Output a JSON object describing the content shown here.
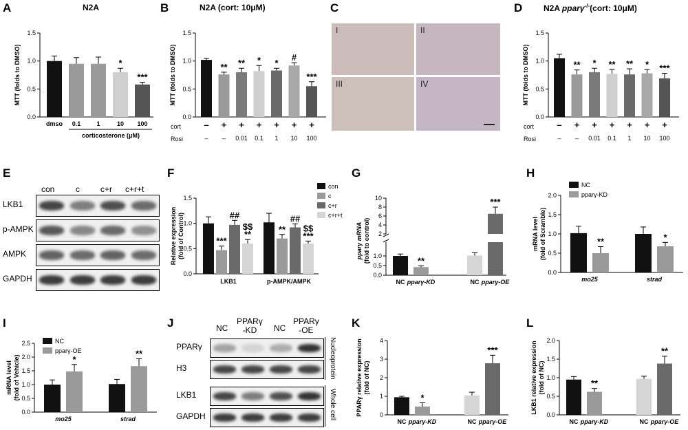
{
  "panels": {
    "A": {
      "label": "A",
      "title": "N2A",
      "ylabel": "MTT (folds to DMSO)",
      "xgroup": "corticosterone (μM)"
    },
    "B": {
      "label": "B",
      "title": "N2A (cort: 10μM)",
      "ylabel": "MTT (folds to DMSO)",
      "row1_label": "cort",
      "row2_label": "Rosi",
      "row1": [
        "–",
        "+",
        "+",
        "+",
        "+",
        "+",
        "+"
      ],
      "row2": [
        "–",
        "–",
        "0.01",
        "0.1",
        "1",
        "10",
        "100"
      ]
    },
    "C": {
      "label": "C",
      "quadrants": [
        "I",
        "II",
        "III",
        "IV"
      ]
    },
    "D": {
      "label": "D",
      "title_prefix": "N2A ",
      "title_gene": "pparγ",
      "title_sup": "-/-",
      "title_suffix": "(cort: 10μM)",
      "ylabel": "MTT (folds to DMSO)",
      "row1_label": "cort",
      "row2_label": "Rosi",
      "row1": [
        "–",
        "+",
        "+",
        "+",
        "+",
        "+",
        "+"
      ],
      "row2": [
        "–",
        "–",
        "0.01",
        "0.1",
        "1",
        "10",
        "100"
      ]
    },
    "E": {
      "label": "E",
      "lanes": [
        "con",
        "c",
        "c+r",
        "c+r+t"
      ],
      "rows": [
        "LKB1",
        "p-AMPK",
        "AMPK",
        "GAPDH"
      ]
    },
    "F": {
      "label": "F",
      "ylabel": "Relative expression",
      "ylabel2": "(fold of Control)",
      "legend": [
        "con",
        "c",
        "c+r",
        "c+r+t"
      ],
      "groups": [
        "LKB1",
        "p-AMPK/AMPK"
      ]
    },
    "G": {
      "label": "G",
      "ylabel": "pparγ mRNA",
      "ylabel2": "(fold to control)",
      "cats": [
        "NC",
        "pparγ-KD",
        "NC",
        "pparγ-OE"
      ]
    },
    "H": {
      "label": "H",
      "ylabel": "mRNA level",
      "ylabel2": "(fold of Scramble)",
      "legend": [
        "NC",
        "pparγ-KD"
      ],
      "groups": [
        "mo25",
        "strad"
      ]
    },
    "I": {
      "label": "I",
      "ylabel": "mRNA level",
      "ylabel2": "(fold of Vehicle)",
      "legend": [
        "NC",
        "pparγ-OE"
      ],
      "groups": [
        "mo25",
        "strad"
      ]
    },
    "J": {
      "label": "J",
      "lanes": [
        "NC",
        "PPARγ\n-KD",
        "NC",
        "PPARγ\n-OE"
      ],
      "rows": [
        "PPARγ",
        "H3",
        "LKB1",
        "GAPDH"
      ],
      "side": [
        "Nucleoprotein",
        "Whole cell"
      ]
    },
    "K": {
      "label": "K",
      "ylabel": "PPARγ relative expression",
      "ylabel2": "(fold of NC)",
      "cats": [
        "NC",
        "pparγ-KD",
        "NC",
        "pparγ-OE"
      ]
    },
    "L": {
      "label": "L",
      "ylabel": "LKB1 relative expression",
      "ylabel2": "(fold of NC)",
      "cats": [
        "NC",
        "pparγ-KD",
        "NC",
        "pparγ-OE"
      ]
    }
  },
  "chart_data": [
    {
      "id": "A",
      "type": "bar",
      "categories": [
        "dmso",
        "0.1",
        "1",
        "10",
        "100"
      ],
      "values": [
        1.0,
        0.95,
        0.95,
        0.8,
        0.58
      ],
      "errors": [
        0.09,
        0.11,
        0.12,
        0.07,
        0.04
      ],
      "sig": [
        "",
        "",
        "",
        "*",
        "***"
      ],
      "ylim": [
        0,
        1.5
      ],
      "yticks": [
        "0.0",
        "0.5",
        "1.0",
        "1.5"
      ],
      "colors": [
        "#111111",
        "#9a9a9a",
        "#9a9a9a",
        "#cfcfcf",
        "#555555"
      ]
    },
    {
      "id": "B",
      "type": "bar",
      "values": [
        1.02,
        0.76,
        0.8,
        0.82,
        0.83,
        0.92,
        0.55
      ],
      "errors": [
        0.03,
        0.04,
        0.07,
        0.1,
        0.04,
        0.05,
        0.08
      ],
      "sig": [
        "",
        "**",
        "**",
        "*",
        "*",
        "#",
        "***"
      ],
      "ylim": [
        0,
        1.5
      ],
      "yticks": [
        "0.0",
        "0.5",
        "1.0",
        "1.5"
      ],
      "colors": [
        "#111111",
        "#9a9a9a",
        "#7a7a7a",
        "#cfcfcf",
        "#6a6a6a",
        "#a8a8a8",
        "#555555"
      ]
    },
    {
      "id": "D",
      "type": "bar",
      "values": [
        1.05,
        0.76,
        0.8,
        0.77,
        0.76,
        0.78,
        0.69
      ],
      "errors": [
        0.07,
        0.08,
        0.07,
        0.08,
        0.1,
        0.07,
        0.09
      ],
      "sig": [
        "",
        "**",
        "*",
        "**",
        "**",
        "*",
        "***"
      ],
      "ylim": [
        0,
        1.5
      ],
      "yticks": [
        "0.0",
        "0.5",
        "1.0",
        "1.5"
      ],
      "colors": [
        "#111111",
        "#9a9a9a",
        "#7a7a7a",
        "#cfcfcf",
        "#6a6a6a",
        "#a8a8a8",
        "#555555"
      ]
    },
    {
      "id": "F",
      "type": "bar",
      "series": [
        {
          "name": "con",
          "values": [
            1.0,
            1.02
          ],
          "errors": [
            0.13,
            0.18
          ],
          "sig": [
            "",
            ""
          ]
        },
        {
          "name": "c",
          "values": [
            0.47,
            0.7
          ],
          "errors": [
            0.08,
            0.08
          ],
          "sig": [
            "***",
            "**"
          ]
        },
        {
          "name": "c+r",
          "values": [
            0.97,
            0.92
          ],
          "errors": [
            0.09,
            0.07
          ],
          "sig": [
            "##",
            "##"
          ]
        },
        {
          "name": "c+r+t",
          "values": [
            0.6,
            0.6
          ],
          "errors": [
            0.08,
            0.05
          ],
          "sig": [
            "$$\n**",
            "$$\n***"
          ]
        }
      ],
      "categories": [
        "LKB1",
        "p-AMPK/AMPK"
      ],
      "ylim": [
        0,
        1.5
      ],
      "yticks": [
        "0.0",
        "0.5",
        "1.0",
        "1.5"
      ],
      "colors": [
        "#111111",
        "#9a9a9a",
        "#6a6a6a",
        "#d5d5d5"
      ]
    },
    {
      "id": "G",
      "type": "bar",
      "categories": [
        "NC",
        "pparγ-KD",
        "NC",
        "pparγ-OE"
      ],
      "values": [
        1.0,
        0.42,
        1.02,
        6.5
      ],
      "errors": [
        0.1,
        0.07,
        0.15,
        1.5
      ],
      "sig": [
        "",
        "**",
        "",
        "***"
      ],
      "yticks_low": [
        "0.0",
        "0.5",
        "1.0"
      ],
      "yticks_high": [
        "2",
        "4",
        "6",
        "8",
        "10"
      ],
      "colors": [
        "#111111",
        "#9a9a9a",
        "#d5d5d5",
        "#6a6a6a"
      ]
    },
    {
      "id": "H",
      "type": "bar",
      "series": [
        {
          "name": "NC",
          "values": [
            1.02,
            1.0
          ],
          "errors": [
            0.18,
            0.18
          ],
          "sig": [
            "",
            ""
          ]
        },
        {
          "name": "pparγ-KD",
          "values": [
            0.5,
            0.68
          ],
          "errors": [
            0.17,
            0.1
          ],
          "sig": [
            "**",
            "*"
          ]
        }
      ],
      "categories": [
        "mo25",
        "strad"
      ],
      "ylim": [
        0,
        2.0
      ],
      "yticks": [
        "0.0",
        "0.5",
        "1.0",
        "1.5",
        "2.0"
      ],
      "colors": [
        "#111111",
        "#9a9a9a"
      ]
    },
    {
      "id": "I",
      "type": "bar",
      "series": [
        {
          "name": "NC",
          "values": [
            1.0,
            1.02
          ],
          "errors": [
            0.17,
            0.17
          ],
          "sig": [
            "",
            ""
          ]
        },
        {
          "name": "pparγ-OE",
          "values": [
            1.48,
            1.67
          ],
          "errors": [
            0.25,
            0.27
          ],
          "sig": [
            "*",
            "**"
          ]
        }
      ],
      "categories": [
        "mo25",
        "strad"
      ],
      "ylim": [
        0,
        2.5
      ],
      "yticks": [
        "0.0",
        "0.5",
        "1.0",
        "1.5",
        "2.0",
        "2.5"
      ],
      "colors": [
        "#111111",
        "#9a9a9a"
      ]
    },
    {
      "id": "K",
      "type": "bar",
      "categories": [
        "NC",
        "pparγ-KD",
        "NC",
        "pparγ-OE"
      ],
      "values": [
        0.95,
        0.45,
        1.05,
        2.78
      ],
      "errors": [
        0.05,
        0.2,
        0.17,
        0.43
      ],
      "sig": [
        "",
        "*",
        "",
        "***"
      ],
      "ylim": [
        0,
        4
      ],
      "yticks": [
        "0",
        "1",
        "2",
        "3",
        "4"
      ],
      "colors": [
        "#111111",
        "#9a9a9a",
        "#d5d5d5",
        "#6a6a6a"
      ]
    },
    {
      "id": "L",
      "type": "bar",
      "categories": [
        "NC",
        "pparγ-KD",
        "NC",
        "pparγ-OE"
      ],
      "values": [
        0.95,
        0.62,
        0.97,
        1.38
      ],
      "errors": [
        0.08,
        0.09,
        0.07,
        0.2
      ],
      "sig": [
        "",
        "**",
        "",
        "**"
      ],
      "ylim": [
        0,
        2.0
      ],
      "yticks": [
        "0.0",
        "0.5",
        "1.0",
        "1.5",
        "2.0"
      ],
      "colors": [
        "#111111",
        "#9a9a9a",
        "#d5d5d5",
        "#6a6a6a"
      ]
    }
  ]
}
